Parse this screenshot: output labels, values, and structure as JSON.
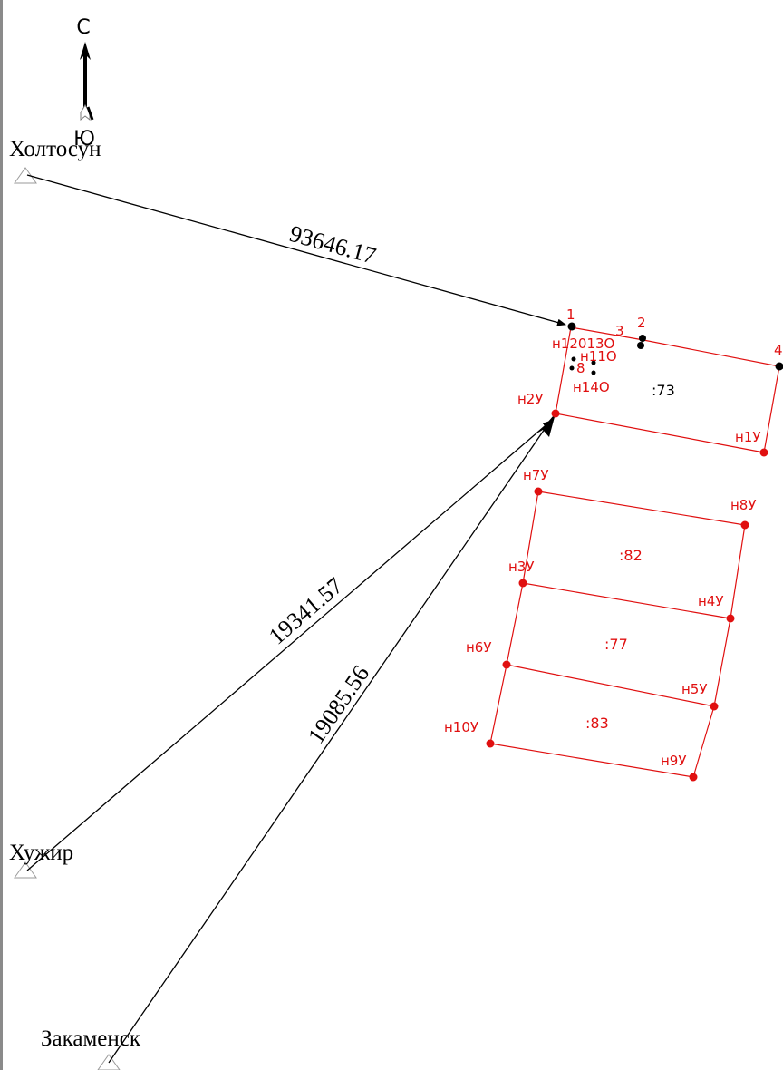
{
  "compass": {
    "north": "С",
    "south": "Ю"
  },
  "reference_points": {
    "holtosun": "Холтосун",
    "huzhir": "Хужир",
    "zakamensk": "Закаменск"
  },
  "distances": {
    "holtosun": "93646.17",
    "huzhir": "19341.57",
    "zakamensk": "19085.56"
  },
  "parcels": {
    "p73": ":73",
    "p82": ":82",
    "p77": ":77",
    "p83": ":83"
  },
  "points": {
    "p1": "1",
    "p2": "2",
    "p3": "3",
    "p4": "4",
    "n1U": "н1У",
    "n2U": "н2У",
    "n3U": "н3У",
    "n4U": "н4У",
    "n5U": "н5У",
    "n6U": "н6У",
    "n7U": "н7У",
    "n8U": "н8У",
    "n9U": "н9У",
    "n10U": "н10У",
    "cluster_row1": "н12013О",
    "cluster_row2": "н11О",
    "cluster_row3": "8",
    "n14O": "н14О"
  },
  "colors": {
    "boundary": "#e01010",
    "lines": "#000000",
    "marker": "#9a9a9a"
  }
}
